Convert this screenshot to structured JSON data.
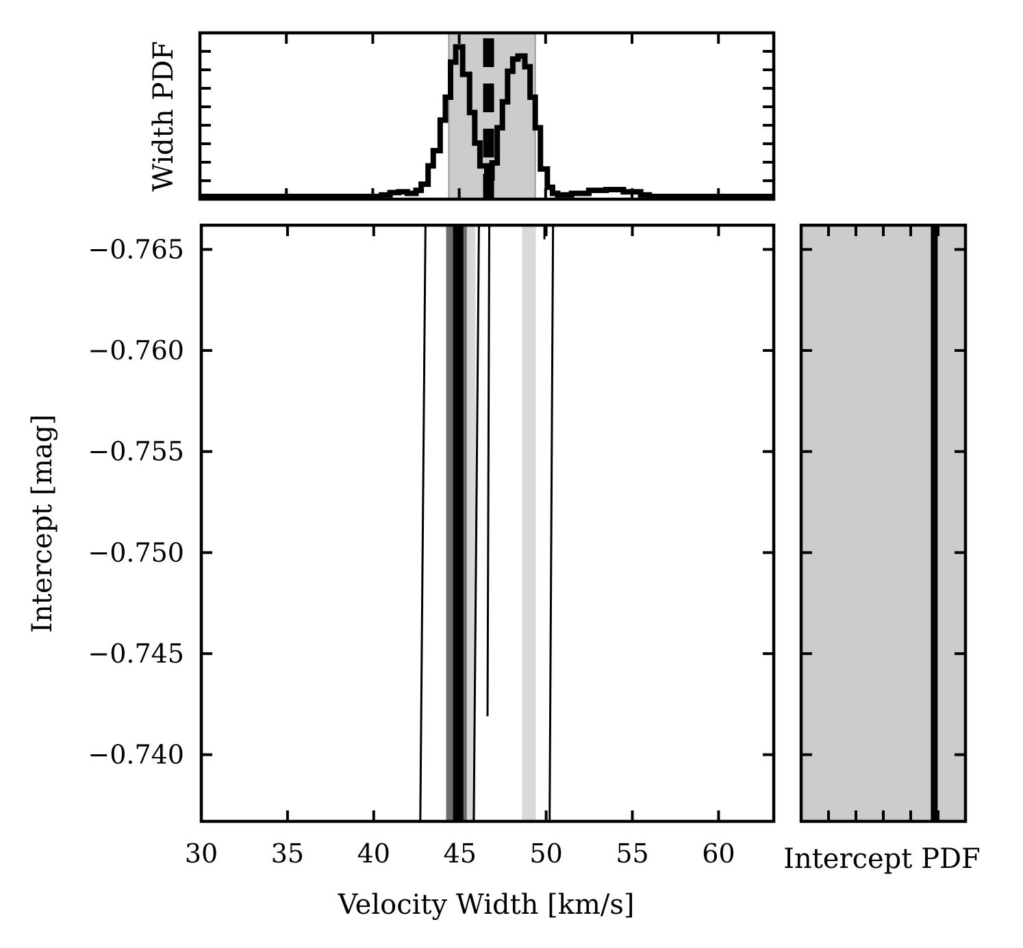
{
  "chart_data": [
    {
      "panel": "main",
      "type": "line",
      "xlabel": "Velocity Width [km/s]",
      "ylabel": "Intercept [mag]",
      "xlim": [
        30,
        63.2
      ],
      "ylim": [
        -0.7367,
        -0.7662
      ],
      "y_inverted": true,
      "x_ticks": [
        30,
        35,
        40,
        45,
        50,
        55,
        60
      ],
      "y_ticks": [
        -0.765,
        -0.76,
        -0.755,
        -0.75,
        -0.745,
        -0.74
      ],
      "x_tick_labels": [
        "30",
        "35",
        "40",
        "45",
        "50",
        "55",
        "60"
      ],
      "y_tick_labels": [
        "−0.765",
        "−0.760",
        "−0.755",
        "−0.750",
        "−0.745",
        "−0.740"
      ],
      "bands": [
        {
          "x": [
            44.2,
            45.9
          ],
          "color": "#d9d9d9"
        },
        {
          "x": [
            44.2,
            45.4
          ],
          "color": "#6e6e6e"
        },
        {
          "x": [
            44.6,
            45.2
          ],
          "color": "#000000"
        },
        {
          "x": [
            48.6,
            49.4
          ],
          "color": "#d9d9d9"
        }
      ],
      "lines": [
        {
          "x": [
            42.7,
            43.0
          ],
          "y": [
            -0.7367,
            -0.7662
          ]
        },
        {
          "x": [
            45.8,
            46.1
          ],
          "y": [
            -0.7367,
            -0.7662
          ]
        },
        {
          "x": [
            46.6,
            46.7
          ],
          "y": [
            -0.7419,
            -0.7662
          ]
        },
        {
          "x": [
            50.2,
            50.4
          ],
          "y": [
            -0.7367,
            -0.7662
          ]
        },
        {
          "x": [
            49.9,
            49.9
          ],
          "y": [
            -0.7655,
            -0.7662
          ]
        }
      ],
      "grid": false
    },
    {
      "panel": "top",
      "type": "line",
      "ylabel": "Width PDF",
      "xlim": [
        30,
        63.2
      ],
      "band": {
        "x": [
          44.4,
          49.4
        ],
        "color": "#cccccc"
      },
      "median_x": 46.7,
      "step_x": [
        30,
        40.5,
        41.0,
        41.5,
        42.0,
        42.5,
        42.8,
        43.2,
        43.5,
        43.9,
        44.2,
        44.5,
        44.8,
        45.2,
        45.6,
        45.9,
        46.2,
        46.6,
        46.9,
        47.2,
        47.5,
        47.8,
        48.1,
        48.4,
        48.8,
        49.1,
        49.4,
        49.7,
        50.1,
        50.4,
        50.7,
        51.5,
        52.5,
        53.5,
        54.5,
        55.5,
        56.0,
        63.2
      ],
      "step_y": [
        0.0,
        0.01,
        0.025,
        0.03,
        0.02,
        0.04,
        0.08,
        0.2,
        0.3,
        0.5,
        0.65,
        0.88,
        0.98,
        0.8,
        0.55,
        0.35,
        0.2,
        0.12,
        0.22,
        0.45,
        0.62,
        0.82,
        0.9,
        0.92,
        0.85,
        0.65,
        0.45,
        0.18,
        0.06,
        0.02,
        0.01,
        0.02,
        0.04,
        0.045,
        0.03,
        0.01,
        0.0,
        0.0
      ],
      "grid": false
    },
    {
      "panel": "right",
      "type": "line",
      "xlabel": "Intercept PDF",
      "fill_color": "#cccccc",
      "vertical_line_fraction": 0.81,
      "grid": false
    }
  ]
}
